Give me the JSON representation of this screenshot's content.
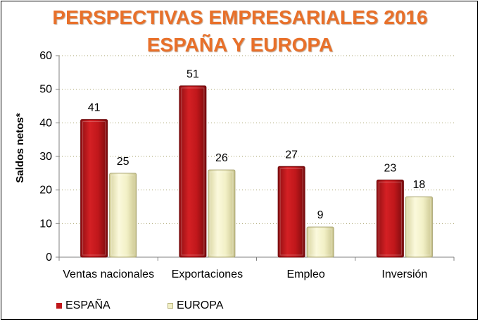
{
  "title_line1": "PERSPECTIVAS EMPRESARIALES 2016",
  "title_line2": "ESPAÑA Y EUROPA",
  "colors": {
    "espana": "#c0171b",
    "europa": "#f2f0c6",
    "title": "#e8702a",
    "grid": "#a6a06a"
  },
  "chart_data": {
    "type": "bar",
    "title": "PERSPECTIVAS EMPRESARIALES 2016 ESPAÑA Y EUROPA",
    "xlabel": "",
    "ylabel": "Saldos netos*",
    "categories": [
      "Ventas nacionales",
      "Exportaciones",
      "Empleo",
      "Inversión"
    ],
    "series": [
      {
        "name": "ESPAÑA",
        "values": [
          41,
          51,
          27,
          23
        ]
      },
      {
        "name": "EUROPA",
        "values": [
          25,
          26,
          9,
          18
        ]
      }
    ],
    "ylim": [
      0,
      60
    ],
    "yticks": [
      0,
      10,
      20,
      30,
      40,
      50,
      60
    ],
    "grid": true,
    "legend_position": "bottom-left"
  }
}
